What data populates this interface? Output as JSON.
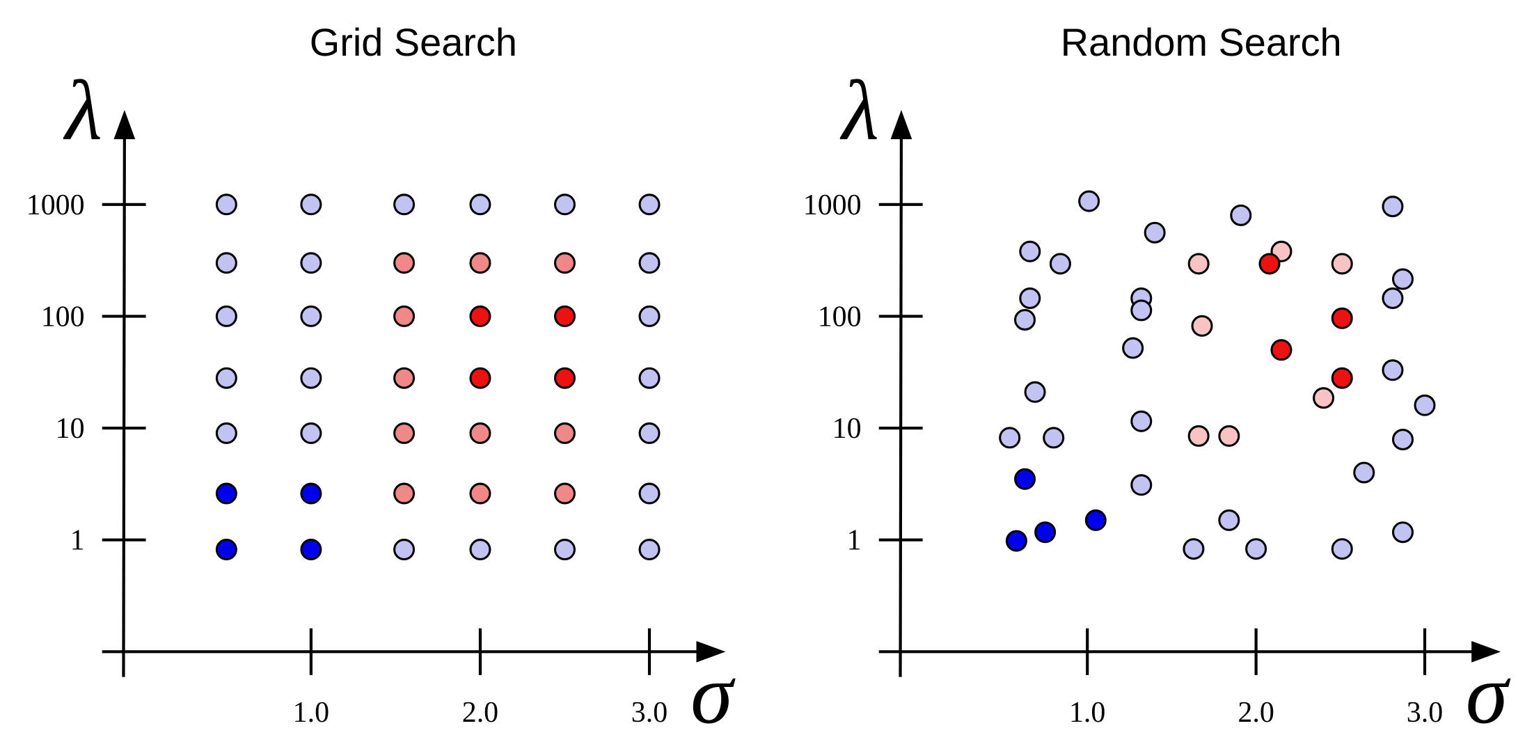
{
  "chart_data": [
    {
      "type": "scatter",
      "title": "Grid Search",
      "xlabel": "σ",
      "ylabel": "λ",
      "xlim": [
        -0.12,
        3.45
      ],
      "ylim": [
        0.1,
        7000
      ],
      "log_y": true,
      "xticks": [
        {
          "value": 1,
          "label": "1.0"
        },
        {
          "value": 2,
          "label": "2.0"
        },
        {
          "value": 3,
          "label": "3.0"
        }
      ],
      "yticks": [
        1,
        10,
        100,
        1000
      ],
      "series": [
        {
          "color": "#c3c3f3",
          "x": [
            0.5,
            1,
            1.55,
            2,
            2.5,
            3,
            0.5,
            1,
            3,
            0.5,
            1,
            3,
            0.5,
            1,
            3,
            0.5,
            1,
            3,
            3,
            1.55,
            2,
            2.5,
            3
          ],
          "y": [
            1000,
            1000,
            1000,
            1000,
            1000,
            1000,
            300,
            300,
            300,
            100,
            100,
            100,
            28,
            28,
            28,
            9,
            9,
            9,
            2.6,
            0.82,
            0.82,
            0.82,
            0.82
          ]
        },
        {
          "color": "#f08888",
          "x": [
            1.55,
            2,
            2.5,
            1.55,
            1.55,
            1.55,
            2,
            2.5,
            1.55,
            2,
            2.5
          ],
          "y": [
            300,
            300,
            300,
            100,
            28,
            9,
            9,
            9,
            2.6,
            2.6,
            2.6
          ]
        },
        {
          "color": "#ee1111",
          "x": [
            2,
            2.5,
            2,
            2.5
          ],
          "y": [
            100,
            100,
            28,
            28
          ]
        },
        {
          "color": "#0000ee",
          "x": [
            0.5,
            1,
            0.5,
            1
          ],
          "y": [
            2.6,
            2.6,
            0.82,
            0.82
          ]
        }
      ]
    },
    {
      "type": "scatter",
      "title": "Random Search",
      "xlabel": "σ",
      "ylabel": "λ",
      "xlim": [
        -0.12,
        3.45
      ],
      "ylim": [
        0.1,
        7000
      ],
      "log_y": true,
      "xticks": [
        {
          "value": 1,
          "label": "1.0"
        },
        {
          "value": 2,
          "label": "2.0"
        },
        {
          "value": 3,
          "label": "3.0"
        }
      ],
      "yticks": [
        1,
        10,
        100,
        1000
      ],
      "series": [
        {
          "color": "#c3c3f3",
          "x": [
            1.01,
            1.4,
            1.91,
            2.81,
            0.66,
            0.84,
            0.66,
            0.63,
            1.32,
            1.32,
            1.27,
            2.87,
            2.81,
            2.81,
            0.69,
            3.0,
            0.54,
            0.8,
            1.32,
            2.87,
            2.64,
            1.32,
            1.84,
            2.87,
            1.63,
            2.0,
            2.51
          ],
          "y": [
            1070,
            560,
            800,
            960,
            380,
            295,
            145,
            93,
            145,
            113,
            52,
            215,
            145,
            33,
            21,
            16,
            8.2,
            8.2,
            11.5,
            7.9,
            4.0,
            3.1,
            1.5,
            1.17,
            0.83,
            0.83,
            0.83
          ]
        },
        {
          "color": "#f9c3c3",
          "x": [
            1.66,
            2.15,
            2.51,
            1.68,
            1.66,
            1.84,
            2.4
          ],
          "y": [
            295,
            380,
            295,
            82,
            8.5,
            8.5,
            18.6
          ]
        },
        {
          "color": "#ee1111",
          "x": [
            2.08,
            2.51,
            2.15,
            2.51
          ],
          "y": [
            295,
            96,
            50,
            28
          ]
        },
        {
          "color": "#0000ee",
          "x": [
            0.63,
            0.58,
            0.75,
            1.05
          ],
          "y": [
            3.5,
            0.98,
            1.17,
            1.5
          ]
        }
      ]
    }
  ]
}
